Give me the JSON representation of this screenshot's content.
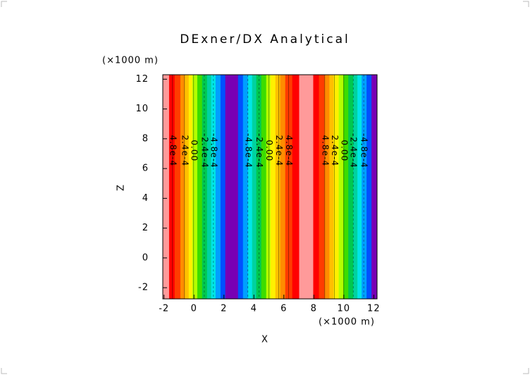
{
  "chart_data": {
    "type": "contour",
    "title": "DExner/DX Analytical",
    "xlabel": "X",
    "ylabel": "Z",
    "xunit": "(×1000 m)",
    "yunit": "(×1000 m)",
    "xlim": [
      -2.08,
      12.22
    ],
    "ylim": [
      -2.75,
      12.3
    ],
    "xticks": [
      -2,
      0,
      2,
      4,
      6,
      8,
      10,
      12
    ],
    "yticks": [
      -2,
      0,
      2,
      4,
      6,
      8,
      10,
      12
    ],
    "x_edges": [
      -2.08,
      -1.66,
      -1.29,
      -0.91,
      -0.63,
      -0.35,
      -0.11,
      0.22,
      0.54,
      0.87,
      1.15,
      1.44,
      1.77,
      2.09,
      2.94,
      3.27,
      3.6,
      3.88,
      4.16,
      4.49,
      4.82,
      5.1,
      5.43,
      5.76,
      6.09,
      6.56,
      7.02,
      7.96,
      8.34,
      8.71,
      9.04,
      9.32,
      9.66,
      9.97,
      10.3,
      10.63,
      10.91,
      11.19,
      11.52,
      11.85,
      12.22
    ],
    "colors": [
      "#ff9a9a",
      "#ff0000",
      "#ff3c00",
      "#ff8c00",
      "#ffc000",
      "#fff000",
      "#b4ff00",
      "#3cdc00",
      "#00c850",
      "#00d2a0",
      "#00e6e6",
      "#00a0ff",
      "#0050ff",
      "#7800b4",
      "#0050ff",
      "#00a0ff",
      "#00e6e6",
      "#00d2a0",
      "#00c850",
      "#3cdc00",
      "#b4ff00",
      "#fff000",
      "#ffc000",
      "#ff8c00",
      "#ff3c00",
      "#ff0000",
      "#ff9a9a",
      "#ff0000",
      "#ff3c00",
      "#ff8c00",
      "#ffc000",
      "#fff000",
      "#b4ff00",
      "#3cdc00",
      "#00c850",
      "#00d2a0",
      "#00e6e6",
      "#00a0ff",
      "#0050ff",
      "#7800b4"
    ],
    "contours": [
      {
        "x": -1.43,
        "label": "4.8e-4",
        "style": "solid"
      },
      {
        "x": -0.63,
        "label": "2.4e-4",
        "style": "solid"
      },
      {
        "x": -0.02,
        "label": "0.00",
        "style": "solid"
      },
      {
        "x": 0.69,
        "label": "-2.4e-4",
        "style": "dashed"
      },
      {
        "x": 1.3,
        "label": "-4.8e-4",
        "style": "dashed"
      },
      {
        "x": 3.6,
        "label": "-4.8e-4",
        "style": "dashed"
      },
      {
        "x": 4.34,
        "label": "-2.4e-4",
        "style": "dashed"
      },
      {
        "x": 5.0,
        "label": "0.00",
        "style": "solid"
      },
      {
        "x": 5.66,
        "label": "2.4e-4",
        "style": "solid"
      },
      {
        "x": 6.32,
        "label": "4.8e-4",
        "style": "solid"
      },
      {
        "x": 8.73,
        "label": "4.8e-4",
        "style": "solid"
      },
      {
        "x": 9.38,
        "label": "2.4e-4",
        "style": "solid"
      },
      {
        "x": 10.0,
        "label": "0.00",
        "style": "solid"
      },
      {
        "x": 10.63,
        "label": "-2.4e-4",
        "style": "dashed"
      },
      {
        "x": 11.33,
        "label": "-4.8e-4",
        "style": "dashed"
      }
    ]
  }
}
